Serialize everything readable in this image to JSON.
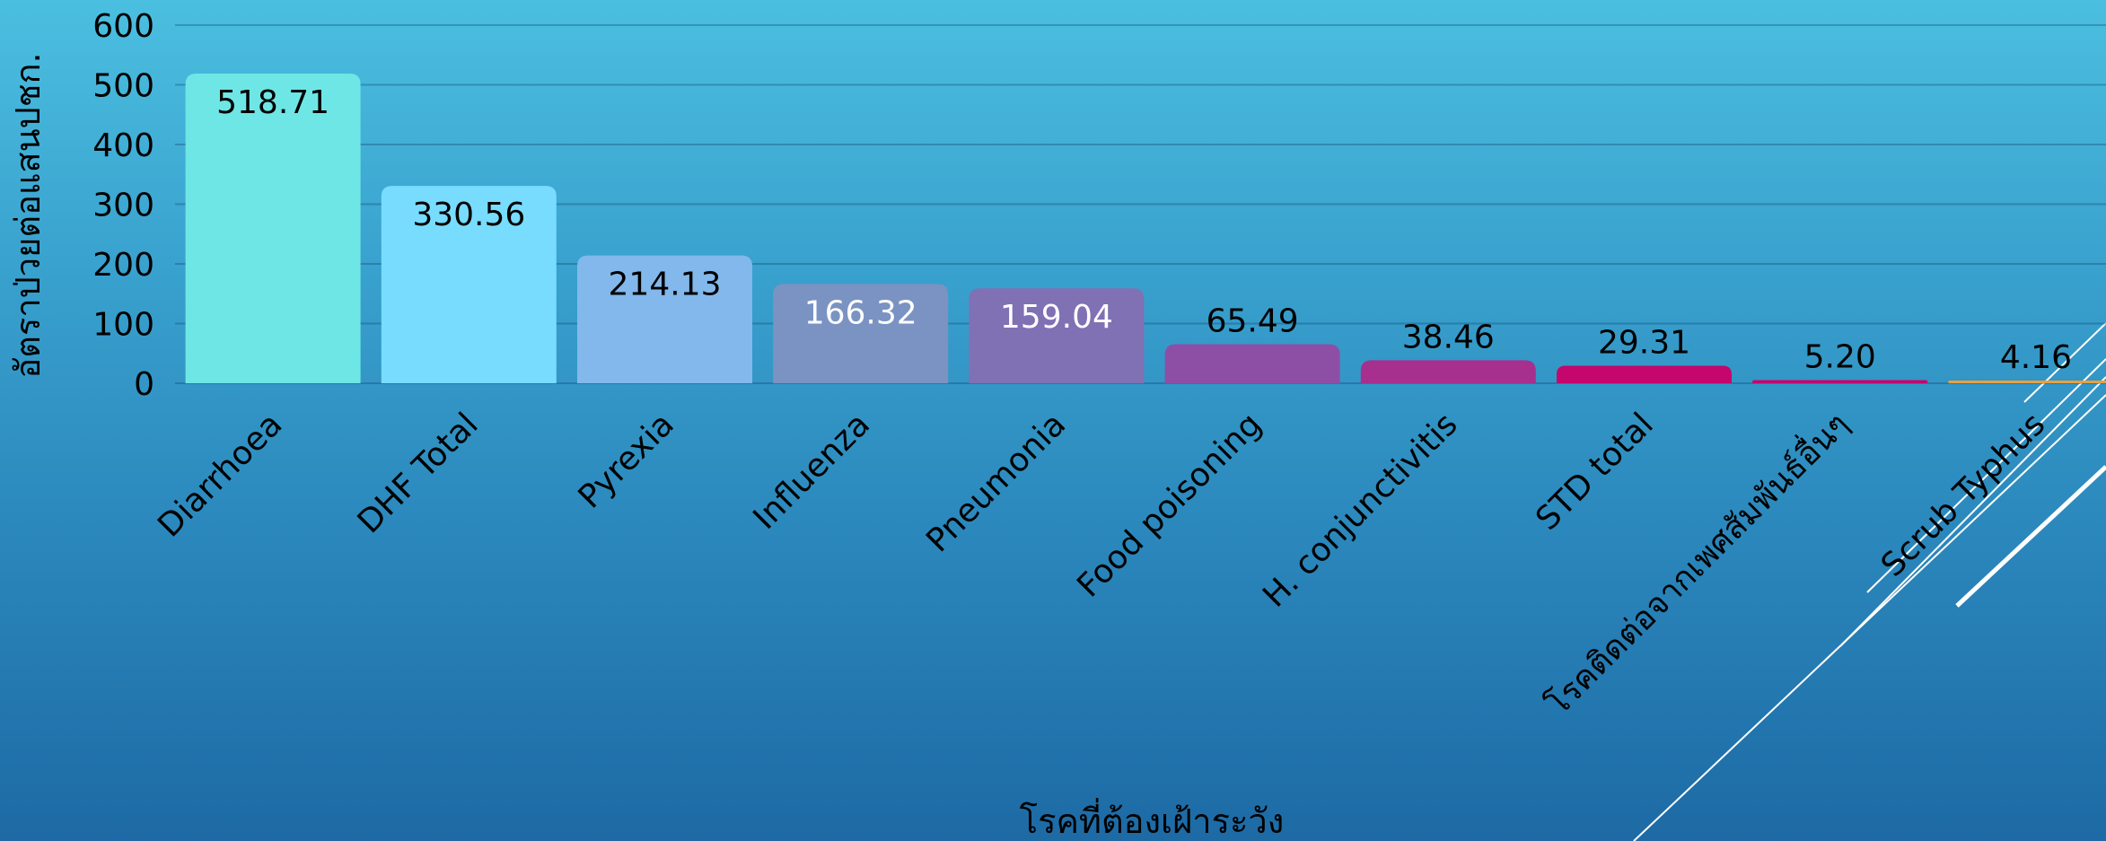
{
  "chart_data": {
    "type": "bar",
    "title": "",
    "xlabel": "โรคที่ต้องเฝ้าระวัง",
    "ylabel": "อัตราป่วยต่อแสนปชก.",
    "ylim": [
      0,
      600
    ],
    "yticks": [
      0,
      100,
      200,
      300,
      400,
      500,
      600
    ],
    "grid": true,
    "legend": "none",
    "categories": [
      "Diarrhoea",
      "DHF Total",
      "Pyrexia",
      "Influenza",
      "Pneumonia",
      "Food poisoning",
      "H. conjunctivitis",
      "STD total",
      "โรคติดต่อจากเพศสัมพันธ์อื่นๆ",
      "Scrub Typhus"
    ],
    "values": [
      518.71,
      330.56,
      214.13,
      166.32,
      159.04,
      65.49,
      38.46,
      29.31,
      5.2,
      4.16
    ],
    "data_labels": [
      "518.71",
      "330.56",
      "214.13",
      "166.32",
      "159.04",
      "65.49",
      "38.46",
      "29.31",
      "5.20",
      "4.16"
    ],
    "colors": [
      "#6ee6e6",
      "#78dcff",
      "#82b8eb",
      "#7a93c2",
      "#7f71b4",
      "#8d4fa6",
      "#a7308f",
      "#c5066d",
      "#c5066d",
      "#e8a040"
    ],
    "label_inside": [
      true,
      true,
      true,
      true,
      true,
      false,
      false,
      false,
      false,
      false
    ],
    "label_colors": [
      "#000000",
      "#000000",
      "#000000",
      "#ffffff",
      "#ffffff",
      "#000000",
      "#000000",
      "#000000",
      "#000000",
      "#000000"
    ]
  }
}
